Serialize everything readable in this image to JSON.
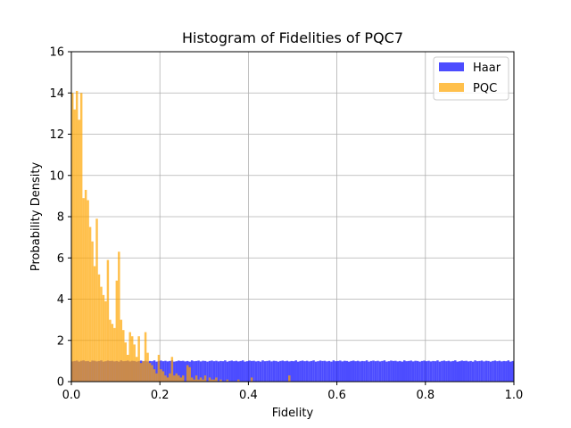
{
  "chart_data": {
    "type": "bar",
    "title": "Histogram of Fidelities of PQC7",
    "xlabel": "Fidelity",
    "ylabel": "Probability Density",
    "xlim": [
      0,
      1
    ],
    "ylim": [
      0,
      16
    ],
    "xticks": [
      "0.0",
      "0.2",
      "0.4",
      "0.6",
      "0.8",
      "1.0"
    ],
    "yticks": [
      "0",
      "2",
      "4",
      "6",
      "8",
      "10",
      "12",
      "14",
      "16"
    ],
    "grid": true,
    "legend_position": "top-right",
    "bin_width": 0.005,
    "series": [
      {
        "name": "Haar",
        "color": "#0000ff",
        "opacity": 0.7,
        "bin_start": 0.0,
        "values": [
          0.98,
          1.0,
          1.02,
          0.97,
          1.01,
          1.03,
          0.99,
          1.0,
          0.96,
          1.02,
          1.01,
          0.98,
          1.0,
          1.03,
          0.97,
          0.99,
          1.02,
          1.0,
          1.01,
          0.98,
          1.0,
          0.97,
          1.03,
          0.99,
          1.0,
          1.02,
          0.98,
          1.01,
          1.0,
          0.97,
          1.0,
          1.02,
          0.99,
          1.01,
          0.98,
          1.0,
          0.99,
          1.03,
          0.97,
          1.0,
          1.02,
          0.99,
          1.01,
          0.98,
          1.0,
          1.03,
          0.97,
          0.99,
          1.02,
          1.0,
          1.01,
          0.98,
          1.0,
          0.97,
          1.03,
          0.99,
          1.0,
          1.02,
          0.98,
          1.01,
          1.0,
          0.97,
          1.0,
          1.02,
          0.99,
          1.01,
          0.98,
          1.0,
          0.99,
          1.03,
          0.97,
          1.0,
          1.02,
          0.99,
          1.01,
          0.98,
          1.0,
          1.03,
          0.97,
          0.99,
          1.02,
          1.0,
          1.01,
          0.98,
          1.0,
          0.97,
          1.03,
          0.99,
          1.0,
          1.02,
          0.98,
          1.01,
          1.0,
          0.97,
          1.0,
          1.02,
          0.99,
          1.01,
          0.98,
          1.0,
          0.99,
          1.03,
          0.97,
          1.0,
          1.02,
          0.99,
          1.01,
          0.98,
          1.0,
          1.03,
          0.97,
          0.99,
          1.02,
          1.0,
          1.01,
          0.98,
          1.0,
          0.97,
          1.03,
          0.99,
          1.0,
          1.02,
          0.98,
          1.01,
          1.0,
          0.97,
          1.0,
          1.02,
          0.99,
          1.01,
          0.98,
          1.0,
          0.99,
          1.03,
          0.97,
          1.0,
          1.02,
          0.99,
          1.01,
          0.98,
          1.0,
          1.03,
          0.97,
          0.99,
          1.02,
          1.0,
          1.01,
          0.98,
          1.0,
          0.97,
          1.03,
          0.99,
          1.0,
          1.02,
          0.98,
          1.01,
          1.0,
          0.97,
          1.0,
          1.02,
          0.99,
          1.01,
          0.98,
          1.0,
          0.99,
          1.03,
          0.97,
          1.0,
          1.02,
          0.99,
          1.01,
          0.98,
          1.0,
          1.03,
          0.97,
          0.99,
          1.02,
          1.0,
          1.01,
          0.98,
          1.0,
          0.97,
          1.03,
          0.99,
          1.0,
          1.02,
          0.98,
          1.01,
          1.0,
          0.97,
          1.0,
          1.02,
          0.99,
          1.01,
          0.98,
          1.0,
          0.99,
          1.03,
          0.97,
          1.0
        ]
      },
      {
        "name": "PQC",
        "color": "#ffa500",
        "opacity": 0.7,
        "bin_start": 0.0,
        "values": [
          14.0,
          13.2,
          14.1,
          12.7,
          14.0,
          8.9,
          9.3,
          8.8,
          7.5,
          6.8,
          5.6,
          7.9,
          5.2,
          4.6,
          4.2,
          3.9,
          5.9,
          3.0,
          2.8,
          2.6,
          4.9,
          6.3,
          3.0,
          2.5,
          1.9,
          1.3,
          2.4,
          2.2,
          1.8,
          1.2,
          2.2,
          0.9,
          1.0,
          2.4,
          1.4,
          0.9,
          0.8,
          0.6,
          0.4,
          1.3,
          0.6,
          0.5,
          0.3,
          0.2,
          0.4,
          1.2,
          0.3,
          0.4,
          0.3,
          0.2,
          0.3,
          0.0,
          0.8,
          0.7,
          0.2,
          0.1,
          0.3,
          0.1,
          0.2,
          0.1,
          0.3,
          0.0,
          0.2,
          0.1,
          0.1,
          0.2,
          0.0,
          0.1,
          0.0,
          0.0,
          0.1,
          0.0,
          0.0,
          0.0,
          0.0,
          0.1,
          0.0,
          0.0,
          0.0,
          0.0,
          0.0,
          0.2,
          0.0,
          0.0,
          0.0,
          0.0,
          0.0,
          0.0,
          0.0,
          0.0,
          0.0,
          0.0,
          0.0,
          0.0,
          0.0,
          0.0,
          0.0,
          0.0,
          0.3,
          0.0
        ]
      }
    ]
  }
}
